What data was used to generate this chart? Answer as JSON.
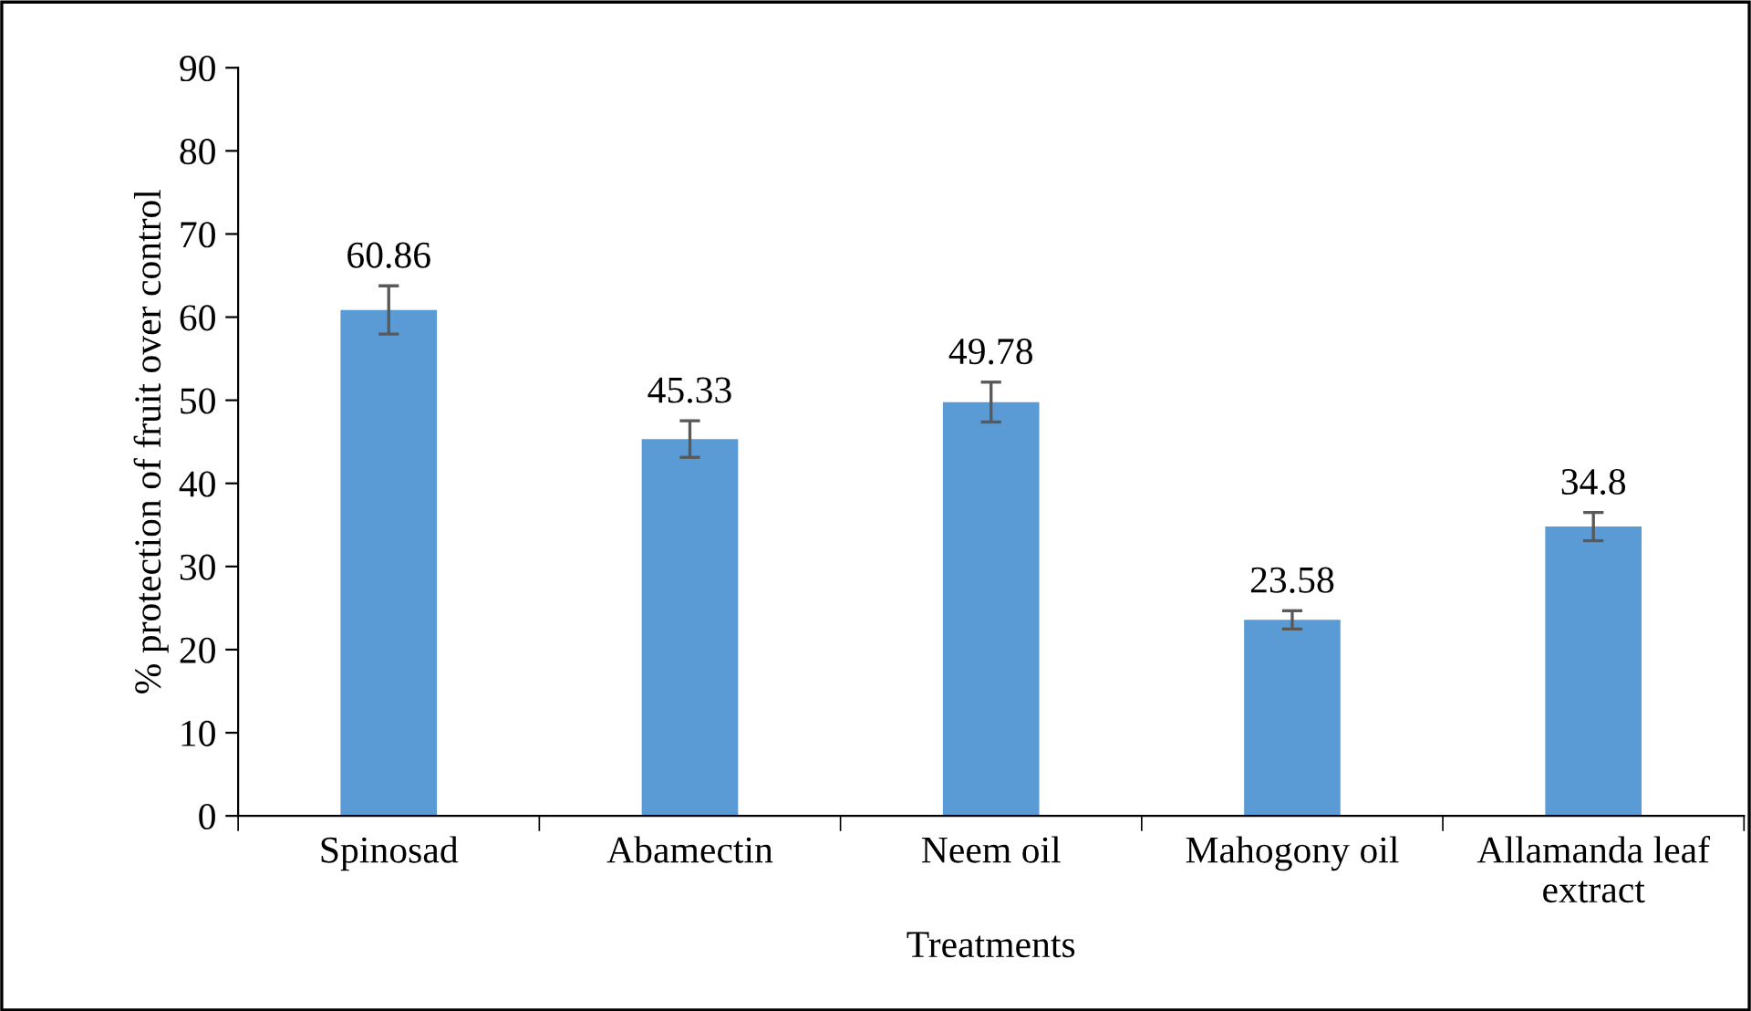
{
  "chart_data": {
    "type": "bar",
    "xlabel": "Treatments",
    "ylabel": "% protection of fruit over control",
    "categories": [
      "Spinosad",
      "Abamectin",
      "Neem oil",
      "Mahogony oil",
      "Allamanda leaf extract"
    ],
    "values": [
      60.86,
      45.33,
      49.78,
      23.58,
      34.8
    ],
    "errors": [
      2.9,
      2.2,
      2.4,
      1.1,
      1.7
    ],
    "color": "#5b9bd5",
    "data_labels": true,
    "ylim": [
      0,
      90
    ],
    "yticks": [
      0,
      10,
      20,
      30,
      40,
      50,
      60,
      70,
      80,
      90
    ],
    "grid": false,
    "legend": false
  }
}
